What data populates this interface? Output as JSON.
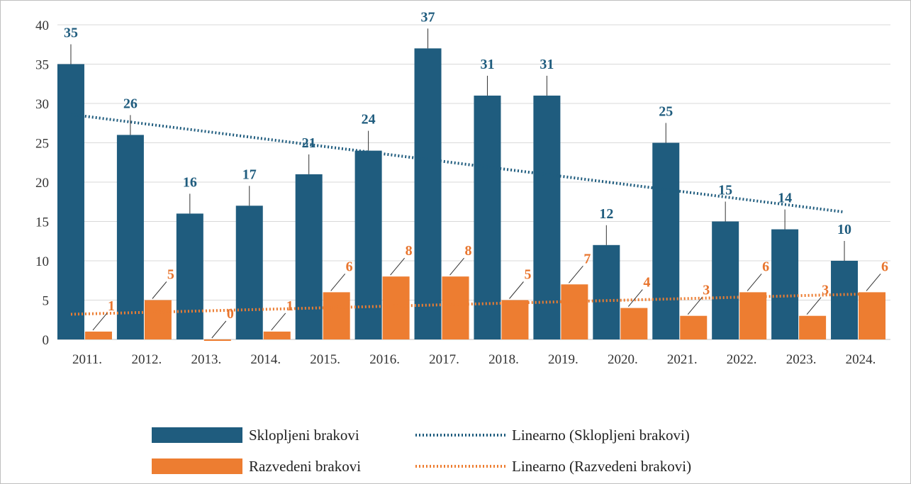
{
  "chart_data": {
    "type": "bar",
    "categories": [
      "2011.",
      "2012.",
      "2013.",
      "2014.",
      "2015.",
      "2016.",
      "2017.",
      "2018.",
      "2019.",
      "2020.",
      "2021.",
      "2022.",
      "2023.",
      "2024."
    ],
    "series": [
      {
        "name": "Sklopljeni brakovi",
        "values": [
          35,
          26,
          16,
          17,
          21,
          24,
          37,
          31,
          31,
          12,
          25,
          15,
          14,
          10
        ],
        "color": "#1f5c7e"
      },
      {
        "name": "Razvedeni brakovi",
        "values": [
          1,
          5,
          0,
          1,
          6,
          8,
          8,
          5,
          7,
          4,
          3,
          6,
          3,
          6
        ],
        "color": "#ed7d31"
      }
    ],
    "trendlines": [
      {
        "name": "Linearno (Sklopljeni brakovi)",
        "start": 28.6,
        "end": 16.2,
        "color": "#1f5c7e"
      },
      {
        "name": "Linearno (Razvedeni brakovi)",
        "start": 3.2,
        "end": 5.8,
        "color": "#ed7d31"
      }
    ],
    "yticks": [
      "0",
      "5",
      "10",
      "15",
      "20",
      "25",
      "30",
      "35",
      "40"
    ],
    "ylim": [
      0,
      40
    ],
    "grid": true,
    "legend_position": "bottom"
  }
}
